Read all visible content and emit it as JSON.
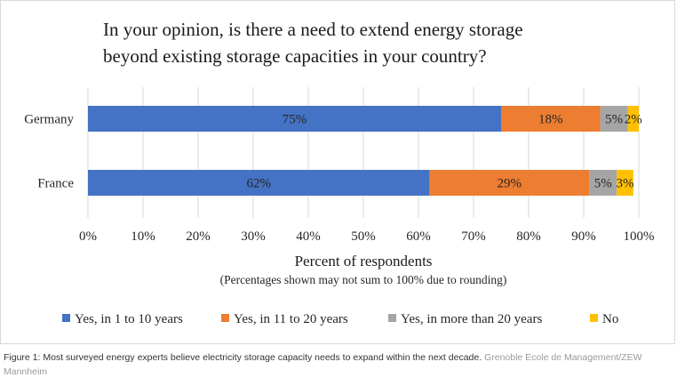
{
  "chart_data": {
    "type": "bar",
    "orientation": "horizontal",
    "stacked": true,
    "title": "In your opinion, is there a need to extend energy storage beyond existing storage capacities in your country?",
    "title_lines": [
      "In your opinion, is there a need to extend energy storage",
      "beyond existing storage capacities in your country?"
    ],
    "categories": [
      "Germany",
      "France"
    ],
    "series": [
      {
        "name": "Yes, in 1 to 10 years",
        "color": "#4472c4",
        "values": [
          75,
          62
        ],
        "labels": [
          "75%",
          "62%"
        ]
      },
      {
        "name": "Yes, in 11 to 20 years",
        "color": "#ed7d31",
        "values": [
          18,
          29
        ],
        "labels": [
          "18%",
          "29%"
        ]
      },
      {
        "name": "Yes, in more than 20 years",
        "color": "#a5a5a5",
        "values": [
          5,
          5
        ],
        "labels": [
          "5%",
          "5%"
        ]
      },
      {
        "name": "No",
        "color": "#ffc000",
        "values": [
          2,
          3
        ],
        "labels": [
          "2%",
          "3%"
        ]
      }
    ],
    "xlim": [
      0,
      100
    ],
    "xticks": [
      "0%",
      "10%",
      "20%",
      "30%",
      "40%",
      "50%",
      "60%",
      "70%",
      "80%",
      "90%",
      "100%"
    ],
    "xlabel": "Percent of respondents",
    "note": "(Percentages shown may not sum to 100% due to rounding)",
    "grid": true,
    "legend": "bottom"
  },
  "caption": {
    "text": "Figure 1: Most surveyed energy experts believe electricity storage capacity needs to expand within the next decade.",
    "credit": "Grenoble Ecole de Management/ZEW Mannheim"
  }
}
